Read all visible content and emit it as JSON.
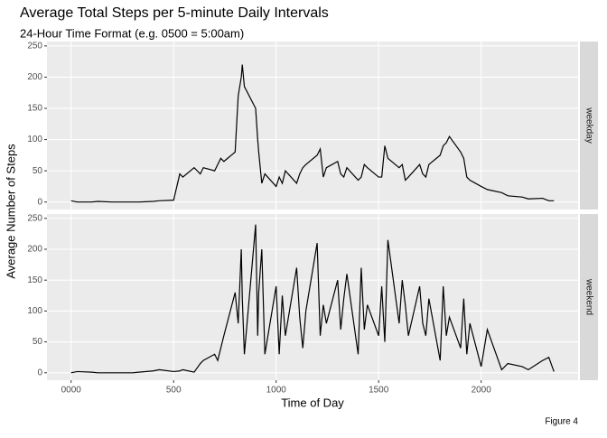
{
  "chart_data": {
    "type": "line",
    "title": "Average Total Steps per 5-minute Daily Intervals",
    "subtitle": "24-Hour Time Format (e.g. 0500 = 5:00am)",
    "x_label": "Time of Day",
    "y_label": "Average Number of Steps",
    "caption": "Figure 4",
    "x": [
      0,
      30,
      100,
      130,
      200,
      230,
      300,
      330,
      400,
      430,
      500,
      530,
      545,
      600,
      615,
      630,
      645,
      700,
      715,
      730,
      745,
      800,
      815,
      830,
      835,
      845,
      900,
      910,
      915,
      930,
      945,
      1000,
      1015,
      1030,
      1045,
      1100,
      1115,
      1130,
      1145,
      1200,
      1215,
      1230,
      1245,
      1300,
      1315,
      1330,
      1345,
      1400,
      1415,
      1430,
      1445,
      1500,
      1515,
      1530,
      1545,
      1600,
      1615,
      1630,
      1645,
      1700,
      1715,
      1730,
      1745,
      1800,
      1815,
      1830,
      1845,
      1900,
      1915,
      1930,
      1945,
      2000,
      2030,
      2100,
      2130,
      2200,
      2230,
      2300,
      2330,
      2355
    ],
    "series": [
      {
        "name": "weekday",
        "color": "#000000",
        "values": [
          2,
          0,
          0,
          1,
          0,
          0,
          0,
          0,
          1,
          2,
          3,
          45,
          40,
          55,
          50,
          45,
          55,
          50,
          60,
          70,
          65,
          80,
          170,
          200,
          220,
          185,
          150,
          100,
          80,
          30,
          45,
          25,
          40,
          30,
          50,
          30,
          45,
          55,
          60,
          75,
          85,
          40,
          55,
          65,
          45,
          40,
          55,
          35,
          40,
          60,
          55,
          40,
          40,
          90,
          70,
          55,
          60,
          35,
          40,
          60,
          45,
          40,
          60,
          75,
          90,
          95,
          105,
          80,
          70,
          40,
          35,
          25,
          20,
          15,
          10,
          8,
          5,
          6,
          2,
          2
        ]
      },
      {
        "name": "weekend",
        "color": "#000000",
        "values": [
          0,
          2,
          1,
          0,
          0,
          0,
          0,
          1,
          3,
          5,
          2,
          3,
          5,
          1,
          8,
          15,
          20,
          30,
          20,
          40,
          60,
          130,
          80,
          200,
          120,
          30,
          240,
          60,
          130,
          200,
          30,
          140,
          30,
          125,
          60,
          170,
          90,
          40,
          100,
          210,
          60,
          110,
          80,
          150,
          70,
          120,
          160,
          30,
          170,
          70,
          110,
          60,
          140,
          50,
          215,
          80,
          150,
          110,
          60,
          140,
          80,
          60,
          120,
          20,
          140,
          60,
          90,
          40,
          120,
          30,
          80,
          10,
          70,
          5,
          15,
          10,
          5,
          20,
          25,
          2
        ]
      }
    ],
    "xlim": [
      -117.75,
      2472.75
    ],
    "xticks": [
      {
        "value": 0,
        "label": "0000"
      },
      500,
      1000,
      1500,
      2000
    ],
    "ylim": [
      -12,
      257
    ],
    "yticks": [
      0,
      50,
      100,
      150,
      200,
      250
    ],
    "grid": true
  }
}
